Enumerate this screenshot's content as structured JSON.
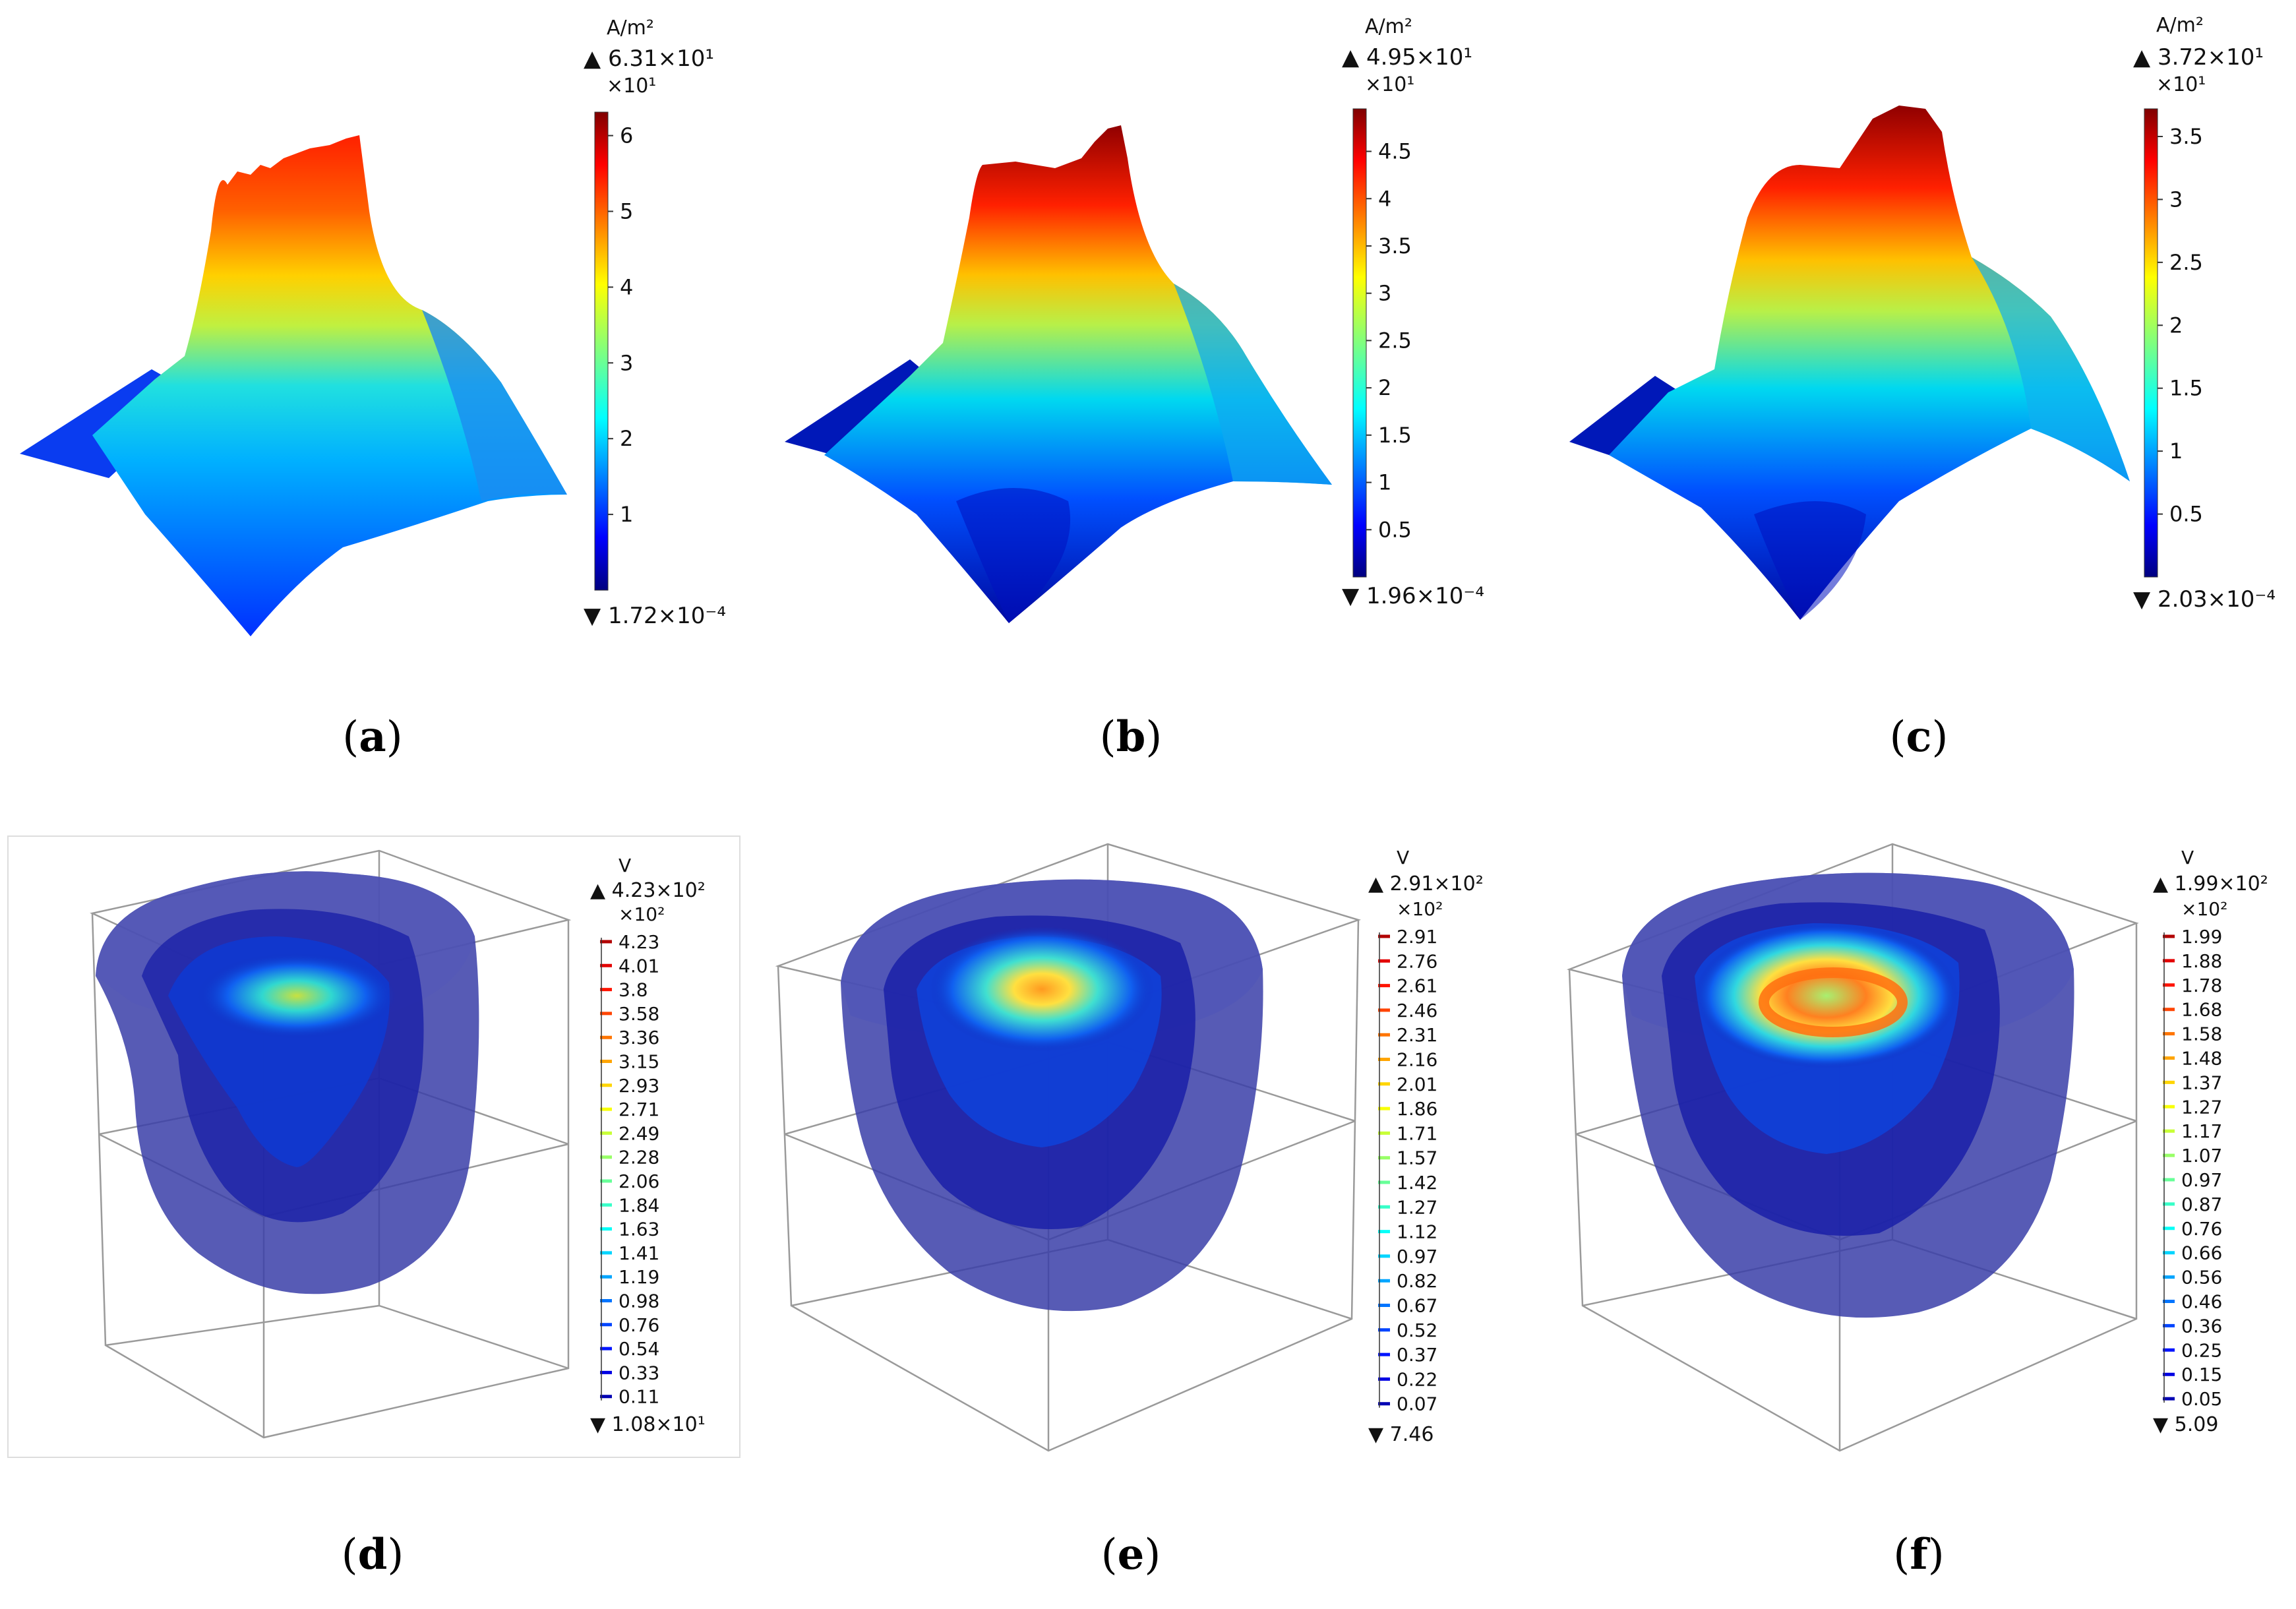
{
  "figure": {
    "panels": [
      {
        "id": "a",
        "caption": "a",
        "kind": "surface",
        "legend": {
          "unit": "A/m²",
          "max_label": "▲ 6.31×10¹",
          "multiplier": "×10¹",
          "min_label": "▼ 1.72×10⁻⁴",
          "ticks": [
            "6",
            "5",
            "4",
            "3",
            "2",
            "1"
          ],
          "tick_values": [
            6,
            5,
            4,
            3,
            2,
            1
          ],
          "range": [
            1.72e-05,
            6.31
          ]
        }
      },
      {
        "id": "b",
        "caption": "b",
        "kind": "surface",
        "legend": {
          "unit": "A/m²",
          "max_label": "▲ 4.95×10¹",
          "multiplier": "×10¹",
          "min_label": "▼ 1.96×10⁻⁴",
          "ticks": [
            "4.5",
            "4",
            "3.5",
            "3",
            "2.5",
            "2",
            "1.5",
            "1",
            "0.5"
          ],
          "tick_values": [
            4.5,
            4,
            3.5,
            3,
            2.5,
            2,
            1.5,
            1,
            0.5
          ],
          "range": [
            1.96e-05,
            4.95
          ]
        }
      },
      {
        "id": "c",
        "caption": "c",
        "kind": "surface",
        "legend": {
          "unit": "A/m²",
          "max_label": "▲ 3.72×10¹",
          "multiplier": "×10¹",
          "min_label": "▼ 2.03×10⁻⁴",
          "ticks": [
            "3.5",
            "3",
            "2.5",
            "2",
            "1.5",
            "1",
            "0.5"
          ],
          "tick_values": [
            3.5,
            3,
            2.5,
            2,
            1.5,
            1,
            0.5
          ],
          "range": [
            2.03e-05,
            3.72
          ]
        }
      },
      {
        "id": "d",
        "caption": "d",
        "kind": "isosurface",
        "legend": {
          "unit": "V",
          "max_label": "▲ 4.23×10²",
          "multiplier": "×10²",
          "min_label": "▼ 1.08×10¹",
          "levels": [
            "4.23",
            "4.01",
            "3.8",
            "3.58",
            "3.36",
            "3.15",
            "2.93",
            "2.71",
            "2.49",
            "2.28",
            "2.06",
            "1.84",
            "1.63",
            "1.41",
            "1.19",
            "0.98",
            "0.76",
            "0.54",
            "0.33",
            "0.11"
          ]
        }
      },
      {
        "id": "e",
        "caption": "e",
        "kind": "isosurface",
        "legend": {
          "unit": "V",
          "max_label": "▲ 2.91×10²",
          "multiplier": "×10²",
          "min_label": "▼ 7.46",
          "levels": [
            "2.91",
            "2.76",
            "2.61",
            "2.46",
            "2.31",
            "2.16",
            "2.01",
            "1.86",
            "1.71",
            "1.57",
            "1.42",
            "1.27",
            "1.12",
            "0.97",
            "0.82",
            "0.67",
            "0.52",
            "0.37",
            "0.22",
            "0.07"
          ]
        }
      },
      {
        "id": "f",
        "caption": "f",
        "kind": "isosurface",
        "legend": {
          "unit": "V",
          "max_label": "▲ 1.99×10²",
          "multiplier": "×10²",
          "min_label": "▼ 5.09",
          "levels": [
            "1.99",
            "1.88",
            "1.78",
            "1.68",
            "1.58",
            "1.48",
            "1.37",
            "1.27",
            "1.17",
            "1.07",
            "0.97",
            "0.87",
            "0.76",
            "0.66",
            "0.56",
            "0.46",
            "0.36",
            "0.25",
            "0.15",
            "0.05"
          ]
        }
      }
    ],
    "colors": {
      "jet_low": "#00007f",
      "jet_high": "#7f0000",
      "iso_fill": "#3a3ea8",
      "box_line": "#9a9a9a"
    }
  }
}
